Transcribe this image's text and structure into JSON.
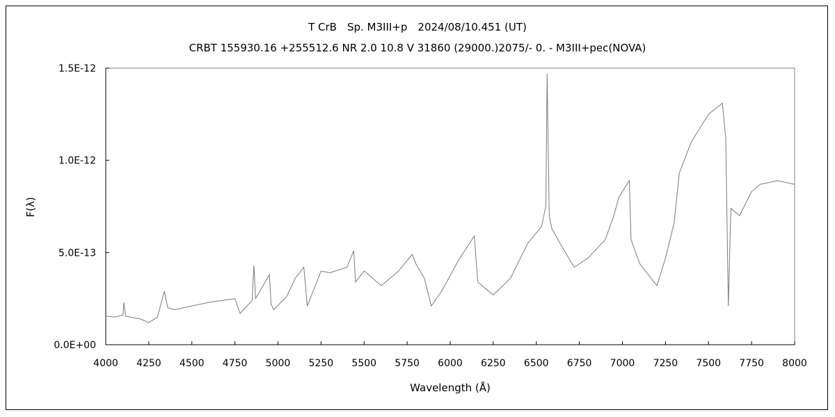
{
  "chart_data": {
    "type": "line",
    "title": "T CrB　Sp. M3III+p　2024/08/10.451 (UT)",
    "subtitle": "CRBT 155930.16 +255512.6 NR 2.0 10.8 V 31860 (29000.)2075/-  0. - M3III+pec(NOVA)",
    "xlabel": "Wavelength (Å)",
    "ylabel": "F(λ)",
    "xlim": [
      4000,
      8000
    ],
    "ylim": [
      0,
      1.5e-12
    ],
    "xticks": [
      4000,
      4250,
      4500,
      4750,
      5000,
      5250,
      5500,
      5750,
      6000,
      6250,
      6500,
      6750,
      7000,
      7250,
      7500,
      7750,
      8000
    ],
    "xtick_labels": [
      "4000",
      "4250",
      "4500",
      "4750",
      "5000",
      "5250",
      "5500",
      "5750",
      "6000",
      "6250",
      "6500",
      "6750",
      "7000",
      "7250",
      "7500",
      "7750",
      "8000"
    ],
    "yticks": [
      0,
      5e-13,
      1e-12,
      1.5e-12
    ],
    "ytick_labels": [
      "0.0E+00",
      "5.0E-13",
      "1.0E-12",
      "1.5E-12"
    ],
    "grid": false,
    "line_color": "#7a7a7a",
    "series": [
      {
        "x": [
          4000,
          4050,
          4100,
          4105,
          4115,
          4200,
          4250,
          4300,
          4340,
          4360,
          4400,
          4500,
          4600,
          4750,
          4780,
          4850,
          4860,
          4870,
          4950,
          4960,
          4975,
          5050,
          5100,
          5150,
          5170,
          5250,
          5300,
          5400,
          5440,
          5450,
          5500,
          5600,
          5700,
          5780,
          5800,
          5850,
          5890,
          5950,
          6050,
          6140,
          6160,
          6250,
          6350,
          6450,
          6530,
          6555,
          6563,
          6575,
          6590,
          6650,
          6720,
          6800,
          6900,
          6950,
          6980,
          7040,
          7050,
          7100,
          7200,
          7250,
          7300,
          7330,
          7400,
          7500,
          7580,
          7600,
          7615,
          7630,
          7680,
          7750,
          7800,
          7900,
          8000
        ],
        "y": [
          1.55e-13,
          1.5e-13,
          1.6e-13,
          2.3e-13,
          1.55e-13,
          1.4e-13,
          1.2e-13,
          1.5e-13,
          2.9e-13,
          2e-13,
          1.9e-13,
          2.1e-13,
          2.3e-13,
          2.5e-13,
          1.7e-13,
          2.4e-13,
          4.3e-13,
          2.5e-13,
          3.8e-13,
          2.2e-13,
          1.9e-13,
          2.6e-13,
          3.6e-13,
          4.2e-13,
          2.1e-13,
          4e-13,
          3.9e-13,
          4.2e-13,
          5.1e-13,
          3.4e-13,
          4e-13,
          3.2e-13,
          4e-13,
          4.9e-13,
          4.4e-13,
          3.6e-13,
          2.1e-13,
          2.9e-13,
          4.6e-13,
          5.9e-13,
          3.4e-13,
          2.7e-13,
          3.6e-13,
          5.5e-13,
          6.4e-13,
          7.5e-13,
          1.47e-12,
          7e-13,
          6.3e-13,
          5.3e-13,
          4.2e-13,
          4.7e-13,
          5.7e-13,
          7e-13,
          8e-13,
          8.9e-13,
          5.7e-13,
          4.4e-13,
          3.2e-13,
          4.7e-13,
          6.6e-13,
          9.3e-13,
          1.1e-12,
          1.25e-12,
          1.31e-12,
          1.12e-12,
          2.1e-13,
          7.4e-13,
          7e-13,
          8.3e-13,
          8.7e-13,
          8.9e-13,
          8.7e-13
        ]
      }
    ]
  }
}
